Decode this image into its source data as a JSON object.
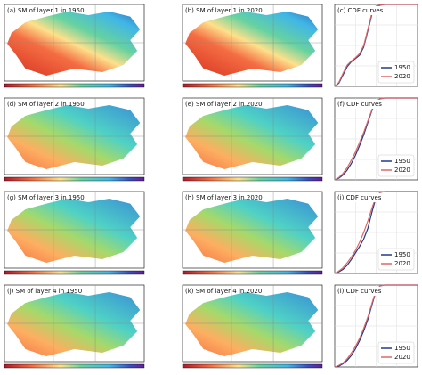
{
  "maps": [
    {
      "title": "(a) SM of layer 1 in 1950"
    },
    {
      "title": "(b) SM of layer 1 in 2020"
    },
    {
      "title": "(d) SM of layer 2 in 1950"
    },
    {
      "title": "(e) SM of layer 2 in 2020"
    },
    {
      "title": "(g) SM of layer 3 in 1950"
    },
    {
      "title": "(h) SM of layer 3 in 2020"
    },
    {
      "title": "(j) SM of layer 4 in 1950"
    },
    {
      "title": "(k) SM of layer 4 in 2020"
    }
  ],
  "chart_data": [
    {
      "type": "line",
      "title": "(c) CDF curves",
      "x": [
        0,
        0.05,
        0.1,
        0.15,
        0.2,
        0.25,
        0.3,
        0.35,
        0.4,
        0.45,
        0.5,
        0.55,
        0.6,
        0.8,
        1
      ],
      "series": [
        {
          "name": "1950",
          "color": "#1f3a8a",
          "values": [
            0,
            0.04,
            0.14,
            0.24,
            0.3,
            0.34,
            0.38,
            0.48,
            0.68,
            0.88,
            0.97,
            0.99,
            1,
            1,
            1
          ]
        },
        {
          "name": "2020",
          "color": "#e06666",
          "values": [
            0,
            0.05,
            0.16,
            0.26,
            0.31,
            0.35,
            0.4,
            0.5,
            0.7,
            0.9,
            0.98,
            0.99,
            1,
            1,
            1
          ]
        }
      ],
      "xlim": [
        0,
        1
      ],
      "ylim": [
        0,
        1
      ],
      "grid": true,
      "legend": "lower right"
    },
    {
      "type": "line",
      "title": "(f) CDF curves",
      "x": [
        0,
        0.05,
        0.1,
        0.15,
        0.2,
        0.25,
        0.3,
        0.35,
        0.4,
        0.45,
        0.5,
        0.55,
        0.6,
        0.8,
        1
      ],
      "series": [
        {
          "name": "1950",
          "color": "#1f3a8a",
          "values": [
            0,
            0.02,
            0.06,
            0.12,
            0.2,
            0.3,
            0.42,
            0.55,
            0.7,
            0.85,
            0.96,
            0.99,
            1,
            1,
            1
          ]
        },
        {
          "name": "2020",
          "color": "#e06666",
          "values": [
            0,
            0.03,
            0.08,
            0.15,
            0.24,
            0.34,
            0.46,
            0.58,
            0.72,
            0.86,
            0.96,
            0.99,
            1,
            1,
            1
          ]
        }
      ],
      "xlim": [
        0,
        1
      ],
      "ylim": [
        0,
        1
      ],
      "grid": true,
      "legend": "lower right"
    },
    {
      "type": "line",
      "title": "(i) CDF curves",
      "x": [
        0,
        0.05,
        0.1,
        0.15,
        0.2,
        0.25,
        0.3,
        0.35,
        0.4,
        0.45,
        0.5,
        0.55,
        0.6,
        0.8,
        1
      ],
      "series": [
        {
          "name": "1950",
          "color": "#1f3a8a",
          "values": [
            0,
            0.02,
            0.05,
            0.1,
            0.17,
            0.25,
            0.33,
            0.42,
            0.55,
            0.75,
            0.93,
            0.99,
            1,
            1,
            1
          ]
        },
        {
          "name": "2020",
          "color": "#e06666",
          "values": [
            0,
            0.03,
            0.07,
            0.13,
            0.2,
            0.28,
            0.38,
            0.5,
            0.64,
            0.8,
            0.94,
            0.99,
            1,
            1,
            1
          ]
        }
      ],
      "xlim": [
        0,
        1
      ],
      "ylim": [
        0,
        1
      ],
      "grid": true,
      "legend": "lower right"
    },
    {
      "type": "line",
      "title": "(l) CDF curves",
      "x": [
        0,
        0.05,
        0.1,
        0.15,
        0.2,
        0.25,
        0.3,
        0.35,
        0.4,
        0.45,
        0.5,
        0.55,
        0.6,
        0.8,
        1
      ],
      "series": [
        {
          "name": "1950",
          "color": "#1f3a8a",
          "values": [
            0,
            0.01,
            0.04,
            0.08,
            0.14,
            0.22,
            0.32,
            0.44,
            0.58,
            0.76,
            0.93,
            0.99,
            1,
            1,
            1
          ]
        },
        {
          "name": "2020",
          "color": "#e06666",
          "values": [
            0,
            0.02,
            0.05,
            0.1,
            0.17,
            0.25,
            0.35,
            0.47,
            0.61,
            0.78,
            0.94,
            0.99,
            1,
            1,
            1
          ]
        }
      ],
      "xlim": [
        0,
        1
      ],
      "ylim": [
        0,
        1
      ],
      "grid": true,
      "legend": "lower right"
    }
  ]
}
